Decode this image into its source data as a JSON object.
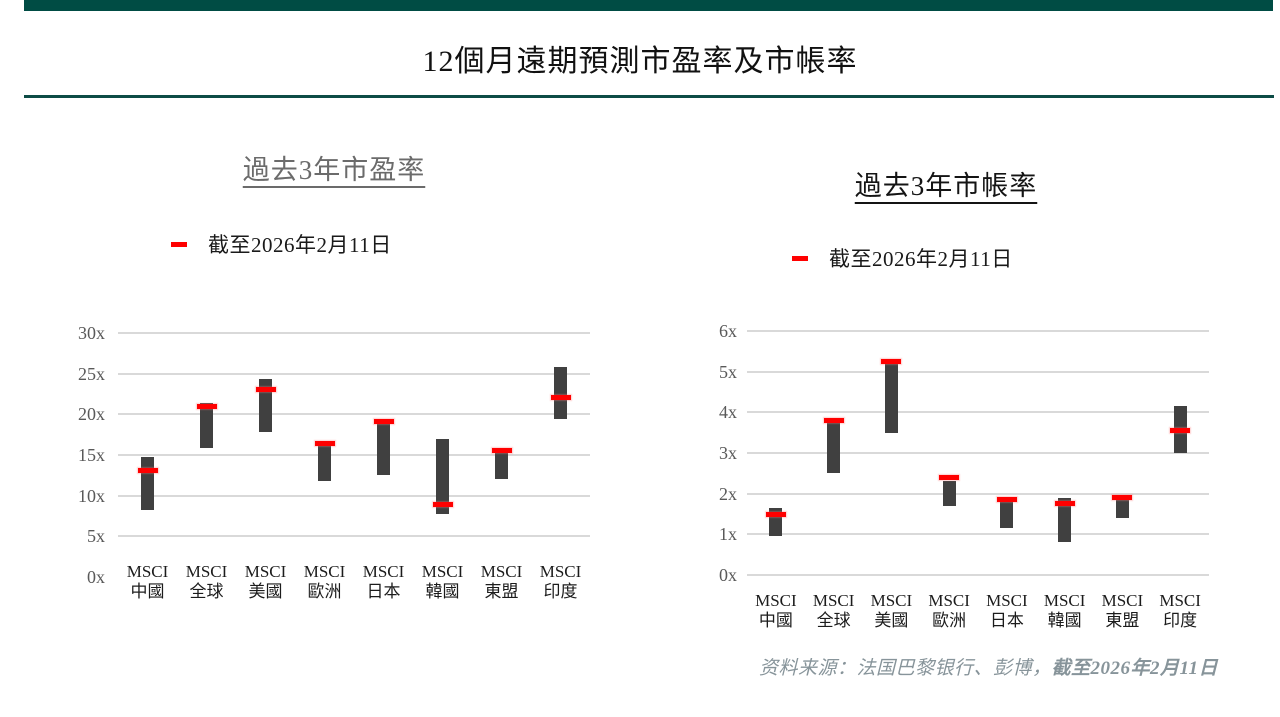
{
  "page_title": "12個月遠期預測市盈率及市帳率",
  "source_note": {
    "prefix": "资料来源：法国巴黎银行、彭博，",
    "date": "截至2026年2月11日"
  },
  "colors": {
    "accent_green": "#004c44",
    "separator_green": "#0d4c46",
    "range_bar": "#404040",
    "current_marker": "#ff0000",
    "gridline": "#d9d9d9",
    "tick_label": "#595959",
    "left_chart_title": "#6b6b6b",
    "right_chart_title": "#141414",
    "source_text": "#87949a"
  },
  "chart_data": [
    {
      "type": "bar",
      "style": "floating-range-bar-with-current-marker",
      "title": "過去3年市盈率",
      "legend": "截至2026年2月11日",
      "legend_position": "top-left",
      "ylim": [
        0,
        30
      ],
      "grid": true,
      "y_ticks": [
        {
          "label": "30x",
          "value": 30
        },
        {
          "label": "25x",
          "value": 25
        },
        {
          "label": "20x",
          "value": 20
        },
        {
          "label": "15x",
          "value": 15
        },
        {
          "label": "10x",
          "value": 10
        },
        {
          "label": "5x",
          "value": 5
        },
        {
          "label": "0x",
          "value": 0
        }
      ],
      "gridline_values": [
        5,
        10,
        15,
        20,
        25,
        30
      ],
      "bars": [
        {
          "category_line1": "MSCI",
          "category_line2": "中國",
          "low": 8.2,
          "high": 14.7,
          "current": 13.1
        },
        {
          "category_line1": "MSCI",
          "category_line2": "全球",
          "low": 15.8,
          "high": 21.4,
          "current": 21.0
        },
        {
          "category_line1": "MSCI",
          "category_line2": "美國",
          "low": 17.8,
          "high": 24.3,
          "current": 23.0
        },
        {
          "category_line1": "MSCI",
          "category_line2": "歐洲",
          "low": 11.8,
          "high": 16.3,
          "current": 16.4
        },
        {
          "category_line1": "MSCI",
          "category_line2": "日本",
          "low": 12.6,
          "high": 18.9,
          "current": 19.1
        },
        {
          "category_line1": "MSCI",
          "category_line2": "韓國",
          "low": 7.8,
          "high": 17.0,
          "current": 8.9
        },
        {
          "category_line1": "MSCI",
          "category_line2": "東盟",
          "low": 12.0,
          "high": 15.3,
          "current": 15.5
        },
        {
          "category_line1": "MSCI",
          "category_line2": "印度",
          "low": 19.4,
          "high": 25.8,
          "current": 22.1
        }
      ]
    },
    {
      "type": "bar",
      "style": "floating-range-bar-with-current-marker",
      "title": "過去3年市帳率",
      "legend": "截至2026年2月11日",
      "legend_position": "top-left",
      "ylim": [
        0,
        6
      ],
      "grid": true,
      "y_ticks": [
        {
          "label": "6x",
          "value": 6
        },
        {
          "label": "5x",
          "value": 5
        },
        {
          "label": "4x",
          "value": 4
        },
        {
          "label": "3x",
          "value": 3
        },
        {
          "label": "2x",
          "value": 2
        },
        {
          "label": "1x",
          "value": 1
        },
        {
          "label": "0x",
          "value": 0
        }
      ],
      "gridline_values": [
        0,
        1,
        2,
        3,
        4,
        5,
        6
      ],
      "bars": [
        {
          "category_line1": "MSCI",
          "category_line2": "中國",
          "low": 0.95,
          "high": 1.65,
          "current": 1.5
        },
        {
          "category_line1": "MSCI",
          "category_line2": "全球",
          "low": 2.5,
          "high": 3.75,
          "current": 3.8
        },
        {
          "category_line1": "MSCI",
          "category_line2": "美國",
          "low": 3.5,
          "high": 5.2,
          "current": 5.25
        },
        {
          "category_line1": "MSCI",
          "category_line2": "歐洲",
          "low": 1.7,
          "high": 2.3,
          "current": 2.4
        },
        {
          "category_line1": "MSCI",
          "category_line2": "日本",
          "low": 1.15,
          "high": 1.8,
          "current": 1.85
        },
        {
          "category_line1": "MSCI",
          "category_line2": "韓國",
          "low": 0.8,
          "high": 1.9,
          "current": 1.75
        },
        {
          "category_line1": "MSCI",
          "category_line2": "東盟",
          "low": 1.4,
          "high": 1.85,
          "current": 1.9
        },
        {
          "category_line1": "MSCI",
          "category_line2": "印度",
          "low": 3.0,
          "high": 4.15,
          "current": 3.55
        }
      ]
    }
  ]
}
